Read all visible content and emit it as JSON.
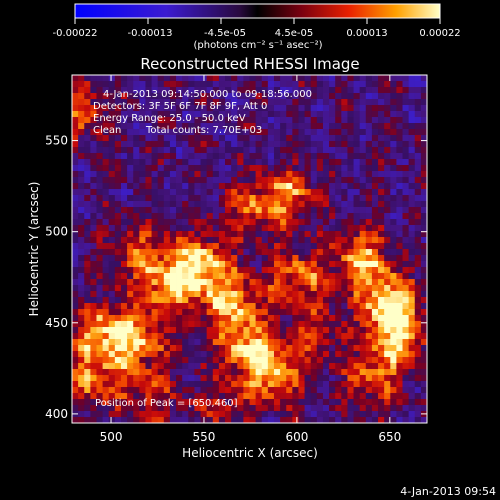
{
  "chart_data": {
    "type": "heatmap",
    "title": "Reconstructed RHESSI Image",
    "xlabel": "Heliocentric X (arcsec)",
    "ylabel": "Heliocentric Y (arcsec)",
    "xlim": [
      479,
      670
    ],
    "ylim": [
      395,
      586
    ],
    "xticks": [
      500,
      550,
      600,
      650
    ],
    "yticks": [
      400,
      450,
      500,
      550
    ],
    "grid": false,
    "colorbar": {
      "ticks": [
        "-0.00022",
        "-0.00013",
        "-4.5e-05",
        "4.5e-05",
        "0.00013",
        "0.00022"
      ],
      "units": "(photons cm⁻² s⁻¹ asec⁻²)",
      "range": [
        -0.00022,
        0.00022
      ],
      "position": "top"
    },
    "annotations": {
      "time": "4-Jan-2013 09:14:50.000 to 09:18:56.000",
      "detectors": "Detectors: 3F 5F 6F 7F 8F 9F, Att 0",
      "energy": "Energy Range: 25.0 - 50.0 keV",
      "clean": "Clean",
      "counts": "Total counts: 7.70E+03",
      "peak": "Position of Peak = [650,460]"
    },
    "timestamp": "4-Jan-2013 09:54",
    "blobs": [
      {
        "x": 548,
        "y": 482,
        "v": 1.0
      },
      {
        "x": 565,
        "y": 460,
        "v": 0.85
      },
      {
        "x": 530,
        "y": 470,
        "v": 0.8
      },
      {
        "x": 575,
        "y": 435,
        "v": 0.85
      },
      {
        "x": 588,
        "y": 420,
        "v": 0.7
      },
      {
        "x": 515,
        "y": 440,
        "v": 0.75
      },
      {
        "x": 495,
        "y": 445,
        "v": 0.8
      },
      {
        "x": 490,
        "y": 420,
        "v": 0.7
      },
      {
        "x": 600,
        "y": 475,
        "v": 0.7
      },
      {
        "x": 635,
        "y": 485,
        "v": 0.85
      },
      {
        "x": 650,
        "y": 460,
        "v": 1.0
      },
      {
        "x": 655,
        "y": 440,
        "v": 0.8
      },
      {
        "x": 640,
        "y": 420,
        "v": 0.6
      },
      {
        "x": 595,
        "y": 520,
        "v": 0.7
      },
      {
        "x": 575,
        "y": 512,
        "v": 0.5
      },
      {
        "x": 483,
        "y": 565,
        "v": 0.6
      },
      {
        "x": 515,
        "y": 490,
        "v": 0.55
      },
      {
        "x": 610,
        "y": 445,
        "v": 0.45
      },
      {
        "x": 520,
        "y": 410,
        "v": 0.45
      },
      {
        "x": 560,
        "y": 405,
        "v": 0.4
      }
    ]
  }
}
